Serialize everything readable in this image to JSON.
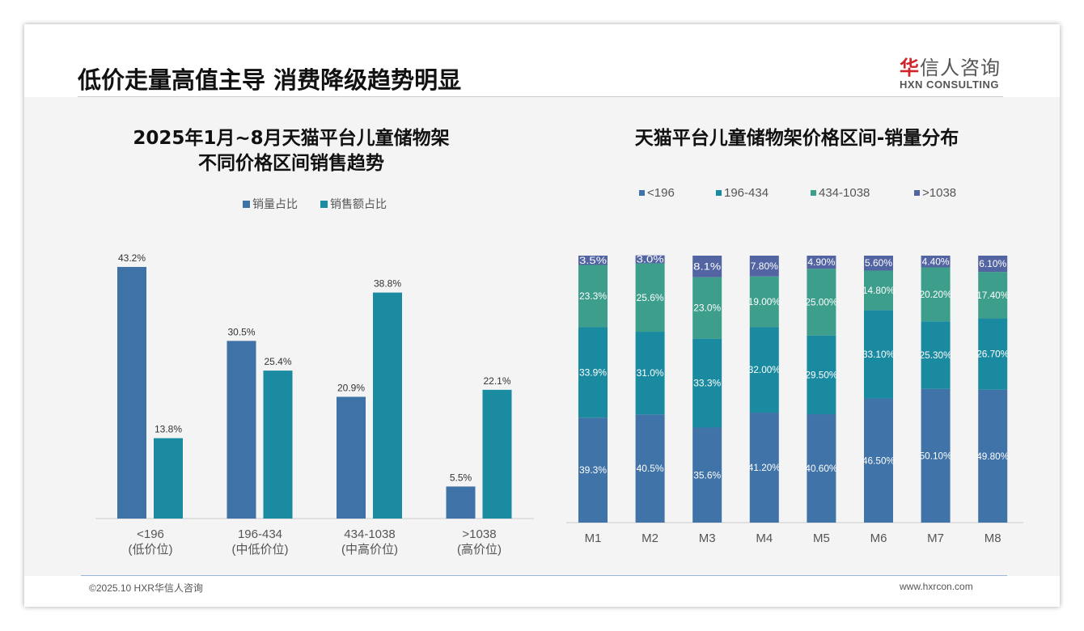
{
  "header": {
    "title": "低价走量高值主导 消费降级趋势明显",
    "logo_cn_accent": "华",
    "logo_cn_rest": "信人咨询",
    "logo_en": "HXN CONSULTING"
  },
  "footer": {
    "copyright": "©2025.10 HXR华信人咨询",
    "website": "www.hxrcon.com"
  },
  "colors": {
    "sales_volume": "#3f72a6",
    "sales_amount": "#1a8ba0",
    "c196": "#4073a8",
    "c434": "#1a8aa0",
    "c1038": "#3d9e8b",
    "cmax": "#5264a2"
  },
  "chart_data": [
    {
      "type": "bar",
      "title_line1": "2025年1月~8月天猫平台儿童储物架",
      "title_line2": "不同价格区间销售趋势",
      "categories": [
        "<196",
        "196-434",
        "434-1038",
        ">1038"
      ],
      "category_sublabels": [
        "(低价位)",
        "(中低价位)",
        "(中高价位)",
        "(高价位)"
      ],
      "series": [
        {
          "name": "销量占比",
          "values": [
            43.2,
            30.5,
            20.9,
            5.5
          ]
        },
        {
          "name": "销售额占比",
          "values": [
            13.8,
            25.4,
            38.8,
            22.1
          ]
        }
      ],
      "ylim": [
        0,
        45
      ],
      "legend": "top",
      "unit": "%"
    },
    {
      "type": "bar",
      "stacked": true,
      "title": "天猫平台儿童储物架价格区间-销量分布",
      "categories": [
        "M1",
        "M2",
        "M3",
        "M4",
        "M5",
        "M6",
        "M7",
        "M8"
      ],
      "series": [
        {
          "name": "<196",
          "values": [
            39.3,
            40.5,
            35.6,
            41.2,
            40.6,
            46.5,
            50.1,
            49.8
          ],
          "labels": [
            "39.3%",
            "40.5%",
            "35.6%",
            "41.20%",
            "40.60%",
            "46.50%",
            "50.10%",
            "49.80%"
          ]
        },
        {
          "name": "196-434",
          "values": [
            33.9,
            31.0,
            33.3,
            32.0,
            29.5,
            33.1,
            25.3,
            26.7
          ],
          "labels": [
            "33.9%",
            "31.0%",
            "33.3%",
            "32.00%",
            "29.50%",
            "33.10%",
            "25.30%",
            "26.70%"
          ]
        },
        {
          "name": "434-1038",
          "values": [
            23.3,
            25.6,
            23.0,
            19.0,
            25.0,
            14.8,
            20.2,
            17.4
          ],
          "labels": [
            "23.3%",
            "25.6%",
            "23.0%",
            "19.00%",
            "25.00%",
            "14.80%",
            "20.20%",
            "17.40%"
          ]
        },
        {
          "name": ">1038",
          "values": [
            3.5,
            3.0,
            8.1,
            7.8,
            4.9,
            5.6,
            4.4,
            6.1
          ],
          "labels": [
            "3.5%",
            "3.0%",
            "8.1%",
            "7.80%",
            "4.90%",
            "5.60%",
            "4.40%",
            "6.10%"
          ]
        }
      ],
      "ylim": [
        0,
        100
      ],
      "legend": "top"
    }
  ]
}
